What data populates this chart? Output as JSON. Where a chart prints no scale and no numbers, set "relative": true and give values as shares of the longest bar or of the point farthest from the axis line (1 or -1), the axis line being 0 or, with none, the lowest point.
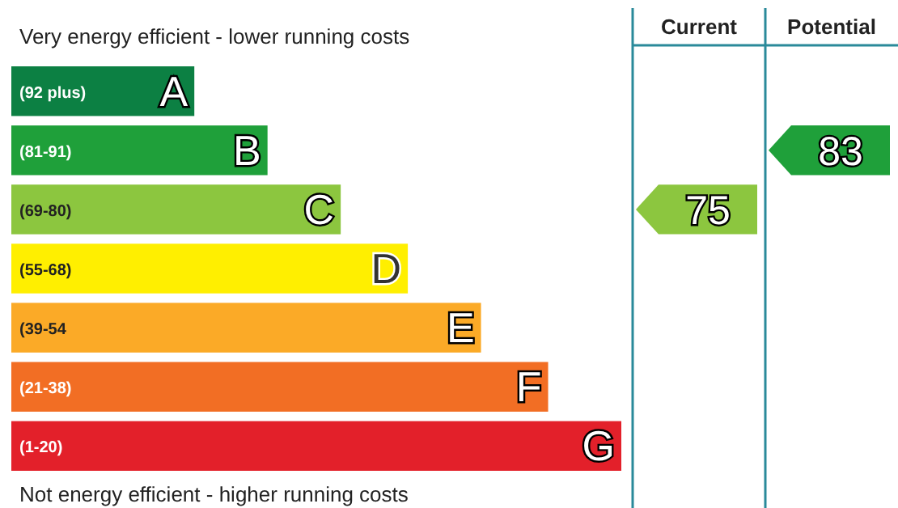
{
  "chart_data": {
    "type": "bar",
    "orientation": "horizontal",
    "relative": true,
    "title": "Very energy efficient - lower running costs",
    "categories": [
      "A",
      "B",
      "C",
      "D",
      "E",
      "F",
      "G"
    ],
    "values": [
      0.3,
      0.42,
      0.54,
      0.65,
      0.77,
      0.88,
      1
    ],
    "y2_categories": [
      "(92 plus)",
      "(81-91)",
      "(69-80)",
      "(55-68)",
      "(39-54",
      "(21-38)",
      "(1-20)"
    ],
    "colors": [
      "#0c8043",
      "#1fa03a",
      "#8cc63f",
      "#ffef00",
      "#fbaa27",
      "#f26e24",
      "#e3202a"
    ],
    "annotations": [
      "Not energy efficient - higher running costs",
      "Current",
      "Potential",
      "75",
      "83"
    ]
  }
}
